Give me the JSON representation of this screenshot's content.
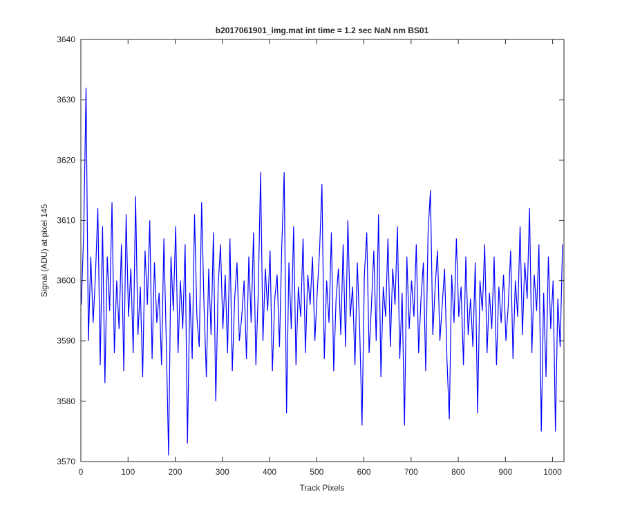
{
  "chart_data": {
    "type": "line",
    "title": "b2017061901_img.mat int time = 1.2 sec  NaN nm BS01",
    "x_label": "Track Pixels",
    "y_label": "Signal (ADU) at pixel 145",
    "xlim": [
      0,
      1024
    ],
    "ylim": [
      3570,
      3640
    ],
    "xticks": [
      0,
      100,
      200,
      300,
      400,
      500,
      600,
      700,
      800,
      900,
      1000
    ],
    "yticks": [
      3570,
      3580,
      3590,
      3600,
      3610,
      3620,
      3630,
      3640
    ],
    "grid": false,
    "x": [
      1,
      6,
      11,
      16,
      21,
      26,
      31,
      36,
      41,
      46,
      51,
      56,
      61,
      66,
      71,
      76,
      81,
      86,
      91,
      96,
      101,
      106,
      111,
      116,
      121,
      126,
      131,
      136,
      141,
      146,
      151,
      156,
      161,
      166,
      171,
      176,
      181,
      186,
      191,
      196,
      201,
      206,
      211,
      216,
      221,
      226,
      231,
      236,
      241,
      246,
      251,
      256,
      261,
      266,
      271,
      276,
      281,
      286,
      291,
      296,
      301,
      306,
      311,
      316,
      321,
      326,
      331,
      336,
      341,
      346,
      351,
      356,
      361,
      366,
      371,
      376,
      381,
      386,
      391,
      396,
      401,
      406,
      411,
      416,
      421,
      426,
      431,
      436,
      441,
      446,
      451,
      456,
      461,
      466,
      471,
      476,
      481,
      486,
      491,
      496,
      501,
      506,
      511,
      516,
      521,
      526,
      531,
      536,
      541,
      546,
      551,
      556,
      561,
      566,
      571,
      576,
      581,
      586,
      591,
      596,
      601,
      606,
      611,
      616,
      621,
      626,
      631,
      636,
      641,
      646,
      651,
      656,
      661,
      666,
      671,
      676,
      681,
      686,
      691,
      696,
      701,
      706,
      711,
      716,
      721,
      726,
      731,
      736,
      741,
      746,
      751,
      756,
      761,
      766,
      771,
      776,
      781,
      786,
      791,
      796,
      801,
      806,
      811,
      816,
      821,
      826,
      831,
      836,
      841,
      846,
      851,
      856,
      861,
      866,
      871,
      876,
      881,
      886,
      891,
      896,
      901,
      906,
      911,
      916,
      921,
      926,
      931,
      936,
      941,
      946,
      951,
      956,
      961,
      966,
      971,
      976,
      981,
      986,
      991,
      996,
      1001,
      1006,
      1011,
      1016,
      1021
    ],
    "series": [
      {
        "name": "signal",
        "color": "#0000ff",
        "values": [
          3596,
          3608,
          3632,
          3590,
          3604,
          3593,
          3601,
          3612,
          3586,
          3609,
          3583,
          3604,
          3595,
          3613,
          3588,
          3600,
          3592,
          3606,
          3585,
          3611,
          3594,
          3602,
          3588,
          3614,
          3591,
          3599,
          3584,
          3605,
          3596,
          3610,
          3587,
          3603,
          3593,
          3598,
          3586,
          3607,
          3590,
          3571,
          3604,
          3595,
          3609,
          3588,
          3600,
          3592,
          3606,
          3573,
          3598,
          3587,
          3611,
          3594,
          3589,
          3613,
          3596,
          3584,
          3602,
          3591,
          3608,
          3580,
          3599,
          3606,
          3592,
          3601,
          3588,
          3607,
          3585,
          3597,
          3603,
          3590,
          3594,
          3600,
          3587,
          3604,
          3593,
          3608,
          3586,
          3598,
          3618,
          3590,
          3602,
          3595,
          3605,
          3585,
          3597,
          3601,
          3589,
          3606,
          3618,
          3578,
          3603,
          3592,
          3609,
          3586,
          3599,
          3594,
          3607,
          3588,
          3601,
          3596,
          3604,
          3590,
          3598,
          3605,
          3616,
          3587,
          3600,
          3593,
          3608,
          3585,
          3597,
          3602,
          3591,
          3606,
          3589,
          3610,
          3594,
          3599,
          3586,
          3603,
          3592,
          3576,
          3601,
          3608,
          3588,
          3596,
          3605,
          3590,
          3611,
          3584,
          3599,
          3594,
          3607,
          3589,
          3602,
          3596,
          3609,
          3587,
          3598,
          3576,
          3604,
          3592,
          3600,
          3594,
          3606,
          3588,
          3597,
          3603,
          3585,
          3608,
          3615,
          3591,
          3599,
          3605,
          3590,
          3596,
          3602,
          3587,
          3577,
          3601,
          3593,
          3607,
          3594,
          3599,
          3586,
          3604,
          3591,
          3597,
          3589,
          3603,
          3578,
          3600,
          3595,
          3606,
          3588,
          3598,
          3592,
          3604,
          3586,
          3599,
          3593,
          3601,
          3590,
          3596,
          3605,
          3587,
          3600,
          3594,
          3609,
          3591,
          3603,
          3597,
          3612,
          3588,
          3601,
          3595,
          3606,
          3575,
          3598,
          3584,
          3604,
          3592,
          3600,
          3575,
          3597,
          3589,
          3606
        ]
      }
    ]
  }
}
